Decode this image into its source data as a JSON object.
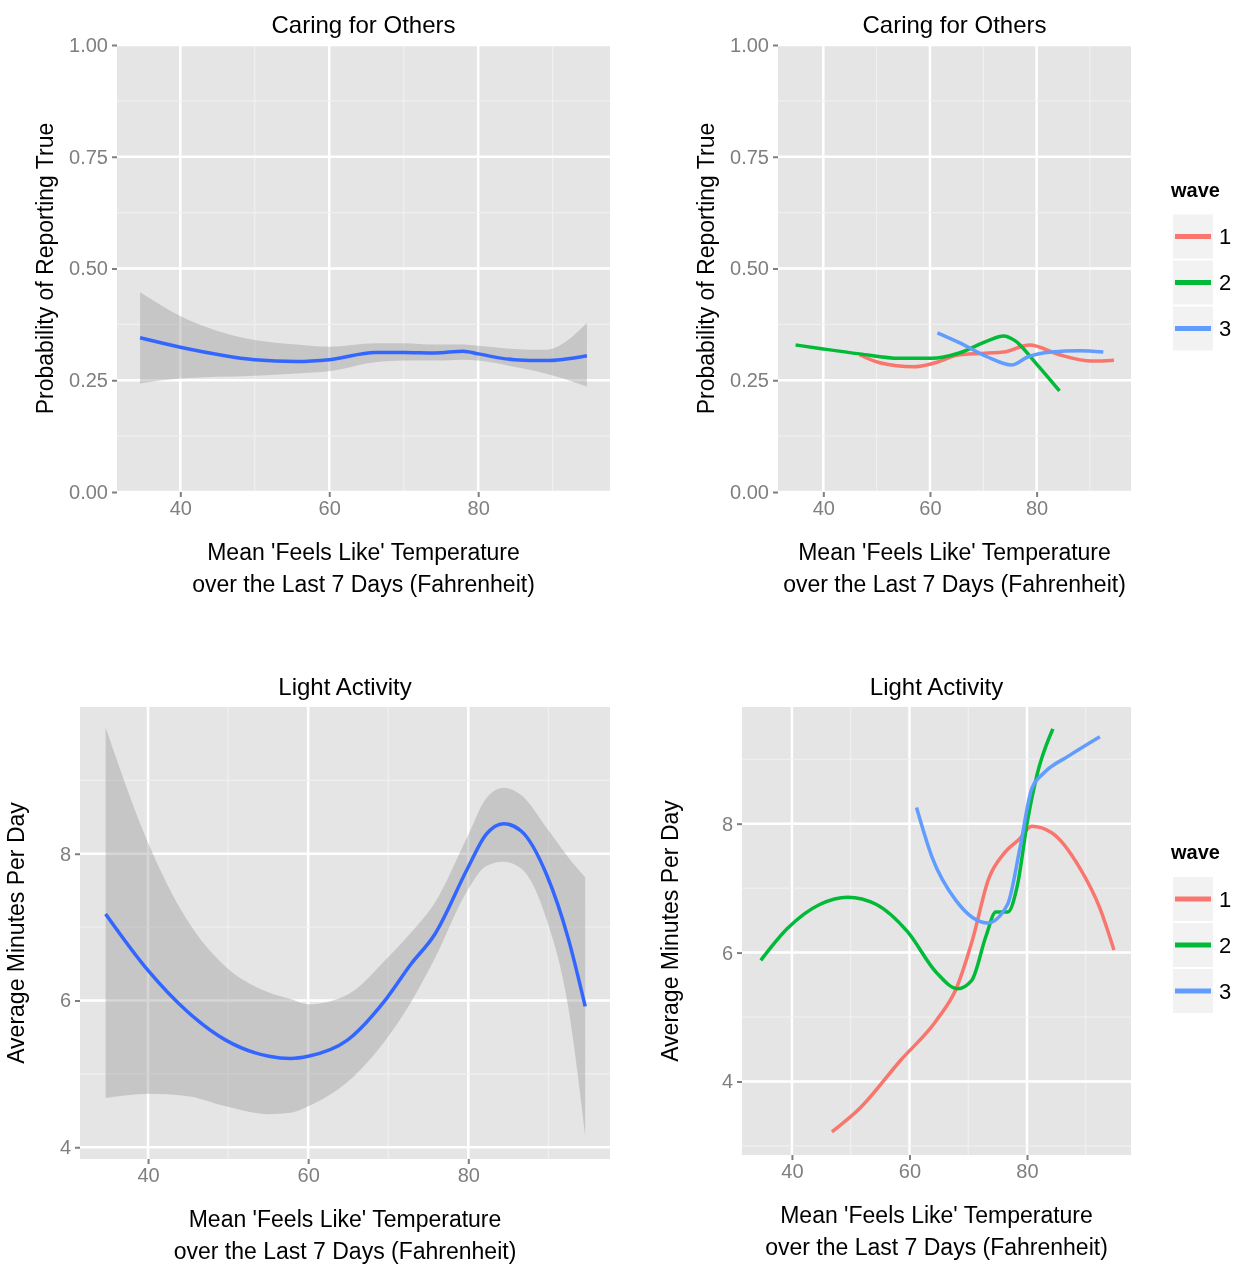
{
  "chart_data": [
    {
      "type": "line",
      "title": "Caring for Others",
      "xlabel": "Mean 'Feels Like' Temperature\nover the Last 7 Days (Fahrenheit)",
      "ylabel": "Probability of Reporting True",
      "xlim": [
        31.5,
        97.7
      ],
      "ylim": [
        0,
        1
      ],
      "xticks": [
        40,
        60,
        80
      ],
      "yticks": [
        {
          "value": 0,
          "label": "0.00"
        },
        {
          "value": 0.25,
          "label": "0.25"
        },
        {
          "value": 0.5,
          "label": "0.50"
        },
        {
          "value": 0.75,
          "label": "0.75"
        },
        {
          "value": 1,
          "label": "1.00"
        }
      ],
      "grid": true,
      "legend": false,
      "series": [
        {
          "color": "#3366ff",
          "x": [
            34.6,
            40,
            50,
            55.6,
            60,
            66.2,
            70,
            74.2,
            78,
            80,
            84.8,
            89,
            94.6
          ],
          "values": [
            0.345,
            0.324,
            0.296,
            0.292,
            0.296,
            0.312,
            0.312,
            0.311,
            0.315,
            0.309,
            0.296,
            0.294,
            0.305
          ],
          "upper": [
            0.447,
            0.394,
            0.34,
            0.33,
            0.325,
            0.333,
            0.333,
            0.33,
            0.33,
            0.327,
            0.32,
            0.318,
            0.378
          ],
          "lower": [
            0.243,
            0.254,
            0.26,
            0.265,
            0.27,
            0.29,
            0.294,
            0.294,
            0.296,
            0.294,
            0.28,
            0.265,
            0.236
          ]
        }
      ]
    },
    {
      "type": "line",
      "title": "Caring for Others",
      "xlabel": "Mean 'Feels Like' Temperature\nover the Last 7 Days (Fahrenheit)",
      "ylabel": "Probability of Reporting True",
      "legend_title": "wave",
      "xlim": [
        31.5,
        97.7
      ],
      "ylim": [
        0,
        1
      ],
      "xticks": [
        40,
        60,
        80
      ],
      "yticks": [
        {
          "value": 0,
          "label": "0.00"
        },
        {
          "value": 0.25,
          "label": "0.25"
        },
        {
          "value": 0.5,
          "label": "0.50"
        },
        {
          "value": 0.75,
          "label": "0.75"
        },
        {
          "value": 1,
          "label": "1.00"
        }
      ],
      "grid": true,
      "legend": "right",
      "series": [
        {
          "name": "1",
          "color": "#f8766d",
          "x": [
            46.8,
            50.6,
            56.9,
            61,
            65.5,
            73.8,
            78.7,
            84.3,
            90.3,
            94.5
          ],
          "values": [
            0.307,
            0.289,
            0.28,
            0.289,
            0.307,
            0.313,
            0.329,
            0.307,
            0.293,
            0.295
          ]
        },
        {
          "name": "2",
          "color": "#00ba38",
          "x": [
            34.8,
            40,
            46.8,
            54.3,
            60.3,
            65.5,
            70.8,
            73.8,
            76,
            79.8,
            84.3
          ],
          "values": [
            0.329,
            0.32,
            0.309,
            0.299,
            0.299,
            0.311,
            0.338,
            0.349,
            0.338,
            0.289,
            0.226
          ]
        },
        {
          "name": "3",
          "color": "#619cff",
          "x": [
            61.4,
            65.5,
            70.8,
            75.3,
            78.3,
            82.8,
            88,
            92.5
          ],
          "values": [
            0.356,
            0.334,
            0.302,
            0.284,
            0.302,
            0.313,
            0.316,
            0.313
          ]
        }
      ]
    },
    {
      "type": "line",
      "title": "Light Activity",
      "xlabel": "Mean 'Feels Like' Temperature\nover the Last 7 Days (Fahrenheit)",
      "ylabel": "Average Minutes Per Day",
      "xlim": [
        31.5,
        97.7
      ],
      "ylim": [
        3.84,
        10
      ],
      "xticks": [
        40,
        60,
        80
      ],
      "yticks": [
        4,
        6,
        8
      ],
      "grid": true,
      "legend": false,
      "series": [
        {
          "color": "#3366ff",
          "x": [
            34.7,
            40,
            44.8,
            49.7,
            55.1,
            57.8,
            60,
            64.9,
            69.8,
            72.8,
            75.8,
            80,
            82.2,
            84.4,
            86.6,
            89.8,
            92.5,
            94.6
          ],
          "values": [
            7.18,
            6.41,
            5.86,
            5.46,
            5.24,
            5.21,
            5.24,
            5.46,
            6.03,
            6.49,
            6.9,
            7.82,
            8.26,
            8.41,
            8.31,
            7.71,
            6.84,
            5.92
          ],
          "upper": [
            9.72,
            8.15,
            7.11,
            6.46,
            6.11,
            6.02,
            5.95,
            6.08,
            6.57,
            6.92,
            7.33,
            8.26,
            8.75,
            8.9,
            8.8,
            8.35,
            7.95,
            7.68
          ],
          "lower": [
            4.67,
            4.73,
            4.7,
            4.56,
            4.45,
            4.47,
            4.56,
            4.89,
            5.48,
            5.97,
            6.57,
            7.52,
            7.83,
            7.89,
            7.8,
            7.1,
            5.9,
            4.15
          ]
        }
      ]
    },
    {
      "type": "line",
      "title": "Light Activity",
      "xlabel": "Mean 'Feels Like' Temperature\nover the Last 7 Days (Fahrenheit)",
      "ylabel": "Average Minutes Per Day",
      "legend_title": "wave",
      "xlim": [
        31.5,
        97.7
      ],
      "ylim": [
        2.86,
        9.81
      ],
      "xticks": [
        40,
        60,
        80
      ],
      "yticks": [
        4,
        6,
        8
      ],
      "grid": true,
      "legend": "right",
      "series": [
        {
          "name": "1",
          "color": "#f8766d",
          "x": [
            46.8,
            51.6,
            58.5,
            64.6,
            68,
            70.7,
            73.5,
            76.2,
            78.8,
            80.8,
            84.2,
            89,
            92.4,
            94.8
          ],
          "values": [
            3.22,
            3.59,
            4.33,
            4.95,
            5.45,
            6.19,
            7.15,
            7.55,
            7.77,
            7.96,
            7.86,
            7.31,
            6.69,
            6.04
          ]
        },
        {
          "name": "2",
          "color": "#00ba38",
          "x": [
            34.7,
            39.3,
            44.8,
            49.5,
            54.3,
            59.7,
            64.5,
            68.2,
            70.6,
            73,
            74.7,
            76.7,
            78.4,
            80.1,
            81.8,
            84.4
          ],
          "values": [
            5.88,
            6.38,
            6.75,
            6.86,
            6.75,
            6.32,
            5.7,
            5.44,
            5.57,
            6.25,
            6.63,
            6.63,
            7.06,
            8.05,
            8.79,
            9.47
          ]
        },
        {
          "name": "3",
          "color": "#619cff",
          "x": [
            61.2,
            63.8,
            67.9,
            73.3,
            76.7,
            78.8,
            80.8,
            82.9,
            86.9,
            92.4
          ],
          "values": [
            8.25,
            7.49,
            6.81,
            6.46,
            6.75,
            7.62,
            8.54,
            8.79,
            9.04,
            9.35
          ]
        }
      ]
    }
  ]
}
